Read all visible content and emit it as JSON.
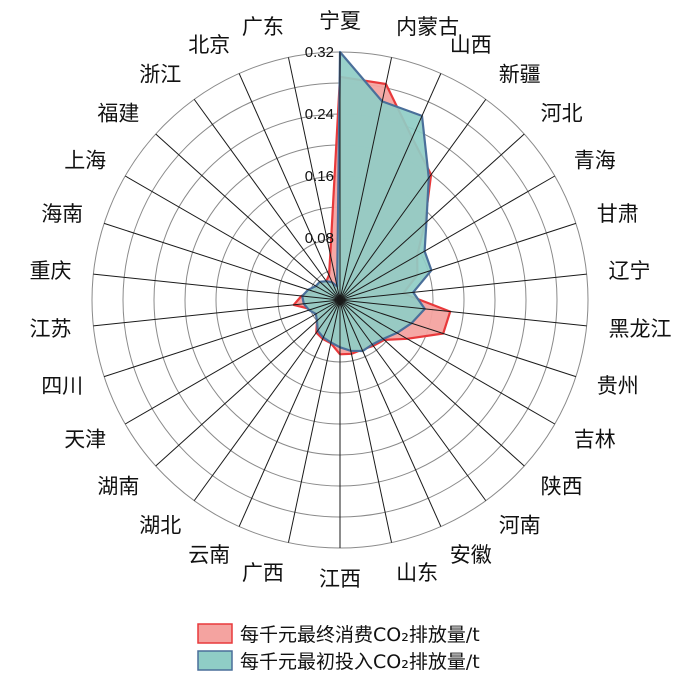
{
  "chart_data": {
    "type": "radar",
    "categories": [
      "宁夏",
      "内蒙古",
      "山西",
      "新疆",
      "河北",
      "青海",
      "甘肃",
      "辽宁",
      "黑龙江",
      "贵州",
      "吉林",
      "陕西",
      "河南",
      "安徽",
      "山东",
      "江西",
      "广西",
      "云南",
      "湖北",
      "湖南",
      "天津",
      "四川",
      "江苏",
      "重庆",
      "海南",
      "上海",
      "福建",
      "浙江",
      "北京",
      "广东"
    ],
    "tick_labels": [
      "0.08",
      "0.16",
      "0.24",
      "0.32"
    ],
    "ylim": [
      0,
      0.32
    ],
    "series": [
      {
        "name": "每千元最终消费CO₂排放量/t",
        "color": "#e8393b",
        "fill": "#f4a3a0",
        "values": [
          0.288,
          0.285,
          0.229,
          0.2,
          0.147,
          0.115,
          0.105,
          0.082,
          0.143,
          0.14,
          0.1,
          0.077,
          0.073,
          0.07,
          0.071,
          0.07,
          0.057,
          0.055,
          0.052,
          0.04,
          0.035,
          0.039,
          0.06,
          0.05,
          0.035,
          0.033,
          0.032,
          0.03,
          0.035,
          0.06
        ]
      },
      {
        "name": "每千元最初投入CO₂排放量/t",
        "color": "#4a6f9a",
        "fill": "#8fcdc6",
        "values": [
          0.32,
          0.262,
          0.26,
          0.195,
          0.15,
          0.126,
          0.124,
          0.095,
          0.11,
          0.097,
          0.085,
          0.075,
          0.071,
          0.072,
          0.067,
          0.061,
          0.056,
          0.053,
          0.049,
          0.04,
          0.036,
          0.042,
          0.047,
          0.049,
          0.043,
          0.036,
          0.035,
          0.03,
          0.025,
          0.018
        ]
      }
    ],
    "legend": {
      "position": "bottom-right",
      "labels": [
        "每千元最终消费CO₂排放量/t",
        "每千元最初投入CO₂排放量/t"
      ]
    },
    "grid": true
  }
}
